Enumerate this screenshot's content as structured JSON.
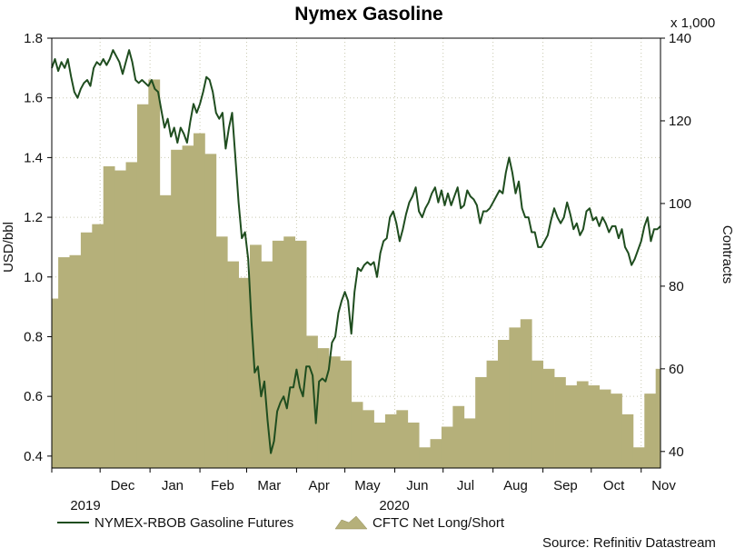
{
  "chart_data": {
    "type": "line",
    "title": "Nymex Gasoline",
    "ylabel_left": "USD/bbl",
    "ylabel_right": "Contracts",
    "right_axis_multiplier": "x 1,000",
    "ylim_left": [
      0.36,
      1.8
    ],
    "ylim_right": [
      36,
      140
    ],
    "yticks_left": [
      "0.4",
      "0.6",
      "0.8",
      "1.0",
      "1.2",
      "1.4",
      "1.6",
      "1.8"
    ],
    "yticks_right": [
      "40",
      "60",
      "80",
      "100",
      "120",
      "140"
    ],
    "xticks": [
      "Dec",
      "Jan",
      "Feb",
      "Mar",
      "Apr",
      "May",
      "Jun",
      "Jul",
      "Aug",
      "Sep",
      "Oct",
      "Nov"
    ],
    "year_labels": [
      "2019",
      "2020"
    ],
    "x_range": [
      "2019-11-01",
      "2020-11-13"
    ],
    "grid": true,
    "legend_position": "bottom",
    "source": "Source: Refinitiv Datastream",
    "series": [
      {
        "name": "NYMEX-RBOB Gasoline Futures",
        "axis": "left",
        "style": "line",
        "color": "#1f4d1f",
        "points": [
          [
            "2019-11-01",
            1.7
          ],
          [
            "2019-11-03",
            1.73
          ],
          [
            "2019-11-05",
            1.69
          ],
          [
            "2019-11-07",
            1.72
          ],
          [
            "2019-11-09",
            1.7
          ],
          [
            "2019-11-11",
            1.73
          ],
          [
            "2019-11-13",
            1.67
          ],
          [
            "2019-11-15",
            1.62
          ],
          [
            "2019-11-17",
            1.6
          ],
          [
            "2019-11-19",
            1.63
          ],
          [
            "2019-11-21",
            1.65
          ],
          [
            "2019-11-23",
            1.66
          ],
          [
            "2019-11-25",
            1.64
          ],
          [
            "2019-11-27",
            1.7
          ],
          [
            "2019-11-29",
            1.72
          ],
          [
            "2019-12-01",
            1.71
          ],
          [
            "2019-12-03",
            1.73
          ],
          [
            "2019-12-05",
            1.71
          ],
          [
            "2019-12-07",
            1.73
          ],
          [
            "2019-12-09",
            1.76
          ],
          [
            "2019-12-11",
            1.74
          ],
          [
            "2019-12-13",
            1.72
          ],
          [
            "2019-12-15",
            1.68
          ],
          [
            "2019-12-17",
            1.72
          ],
          [
            "2019-12-19",
            1.76
          ],
          [
            "2019-12-21",
            1.72
          ],
          [
            "2019-12-23",
            1.66
          ],
          [
            "2019-12-25",
            1.65
          ],
          [
            "2019-12-27",
            1.66
          ],
          [
            "2019-12-29",
            1.65
          ],
          [
            "2019-12-31",
            1.64
          ],
          [
            "2020-01-02",
            1.66
          ],
          [
            "2020-01-04",
            1.63
          ],
          [
            "2020-01-06",
            1.62
          ],
          [
            "2020-01-08",
            1.56
          ],
          [
            "2020-01-10",
            1.5
          ],
          [
            "2020-01-12",
            1.53
          ],
          [
            "2020-01-14",
            1.47
          ],
          [
            "2020-01-16",
            1.5
          ],
          [
            "2020-01-18",
            1.45
          ],
          [
            "2020-01-20",
            1.5
          ],
          [
            "2020-01-22",
            1.48
          ],
          [
            "2020-01-24",
            1.45
          ],
          [
            "2020-01-26",
            1.52
          ],
          [
            "2020-01-28",
            1.58
          ],
          [
            "2020-01-30",
            1.55
          ],
          [
            "2020-02-01",
            1.58
          ],
          [
            "2020-02-03",
            1.62
          ],
          [
            "2020-02-05",
            1.67
          ],
          [
            "2020-02-07",
            1.66
          ],
          [
            "2020-02-09",
            1.62
          ],
          [
            "2020-02-11",
            1.55
          ],
          [
            "2020-02-13",
            1.53
          ],
          [
            "2020-02-15",
            1.55
          ],
          [
            "2020-02-17",
            1.43
          ],
          [
            "2020-02-19",
            1.5
          ],
          [
            "2020-02-21",
            1.55
          ],
          [
            "2020-02-23",
            1.4
          ],
          [
            "2020-02-25",
            1.25
          ],
          [
            "2020-02-27",
            1.13
          ],
          [
            "2020-02-29",
            1.15
          ],
          [
            "2020-03-02",
            1.06
          ],
          [
            "2020-03-04",
            0.85
          ],
          [
            "2020-03-06",
            0.68
          ],
          [
            "2020-03-08",
            0.7
          ],
          [
            "2020-03-10",
            0.6
          ],
          [
            "2020-03-12",
            0.65
          ],
          [
            "2020-03-14",
            0.52
          ],
          [
            "2020-03-16",
            0.41
          ],
          [
            "2020-03-18",
            0.45
          ],
          [
            "2020-03-20",
            0.55
          ],
          [
            "2020-03-22",
            0.58
          ],
          [
            "2020-03-24",
            0.6
          ],
          [
            "2020-03-26",
            0.56
          ],
          [
            "2020-03-28",
            0.63
          ],
          [
            "2020-03-30",
            0.63
          ],
          [
            "2020-04-01",
            0.69
          ],
          [
            "2020-04-03",
            0.63
          ],
          [
            "2020-04-05",
            0.6
          ],
          [
            "2020-04-07",
            0.7
          ],
          [
            "2020-04-09",
            0.7
          ],
          [
            "2020-04-11",
            0.67
          ],
          [
            "2020-04-13",
            0.51
          ],
          [
            "2020-04-15",
            0.65
          ],
          [
            "2020-04-17",
            0.66
          ],
          [
            "2020-04-19",
            0.65
          ],
          [
            "2020-04-21",
            0.69
          ],
          [
            "2020-04-23",
            0.78
          ],
          [
            "2020-04-25",
            0.8
          ],
          [
            "2020-04-27",
            0.88
          ],
          [
            "2020-04-29",
            0.92
          ],
          [
            "2020-05-01",
            0.95
          ],
          [
            "2020-05-03",
            0.92
          ],
          [
            "2020-05-05",
            0.81
          ],
          [
            "2020-05-07",
            0.95
          ],
          [
            "2020-05-09",
            1.03
          ],
          [
            "2020-05-11",
            1.02
          ],
          [
            "2020-05-13",
            1.04
          ],
          [
            "2020-05-15",
            1.05
          ],
          [
            "2020-05-17",
            1.04
          ],
          [
            "2020-05-19",
            1.05
          ],
          [
            "2020-05-21",
            1.0
          ],
          [
            "2020-05-23",
            1.08
          ],
          [
            "2020-05-25",
            1.12
          ],
          [
            "2020-05-27",
            1.13
          ],
          [
            "2020-05-29",
            1.2
          ],
          [
            "2020-05-31",
            1.22
          ],
          [
            "2020-06-02",
            1.18
          ],
          [
            "2020-06-04",
            1.12
          ],
          [
            "2020-06-06",
            1.16
          ],
          [
            "2020-06-08",
            1.21
          ],
          [
            "2020-06-10",
            1.25
          ],
          [
            "2020-06-12",
            1.27
          ],
          [
            "2020-06-14",
            1.3
          ],
          [
            "2020-06-16",
            1.22
          ],
          [
            "2020-06-18",
            1.2
          ],
          [
            "2020-06-20",
            1.23
          ],
          [
            "2020-06-22",
            1.25
          ],
          [
            "2020-06-24",
            1.28
          ],
          [
            "2020-06-26",
            1.3
          ],
          [
            "2020-06-28",
            1.25
          ],
          [
            "2020-06-30",
            1.29
          ],
          [
            "2020-07-02",
            1.24
          ],
          [
            "2020-07-04",
            1.28
          ],
          [
            "2020-07-06",
            1.24
          ],
          [
            "2020-07-08",
            1.27
          ],
          [
            "2020-07-10",
            1.3
          ],
          [
            "2020-07-12",
            1.23
          ],
          [
            "2020-07-14",
            1.24
          ],
          [
            "2020-07-16",
            1.29
          ],
          [
            "2020-07-18",
            1.27
          ],
          [
            "2020-07-20",
            1.26
          ],
          [
            "2020-07-22",
            1.24
          ],
          [
            "2020-07-24",
            1.18
          ],
          [
            "2020-07-26",
            1.22
          ],
          [
            "2020-07-28",
            1.22
          ],
          [
            "2020-07-30",
            1.23
          ],
          [
            "2020-08-01",
            1.25
          ],
          [
            "2020-08-03",
            1.27
          ],
          [
            "2020-08-05",
            1.29
          ],
          [
            "2020-08-07",
            1.28
          ],
          [
            "2020-08-09",
            1.35
          ],
          [
            "2020-08-11",
            1.4
          ],
          [
            "2020-08-13",
            1.35
          ],
          [
            "2020-08-15",
            1.28
          ],
          [
            "2020-08-17",
            1.32
          ],
          [
            "2020-08-19",
            1.23
          ],
          [
            "2020-08-21",
            1.2
          ],
          [
            "2020-08-23",
            1.2
          ],
          [
            "2020-08-25",
            1.15
          ],
          [
            "2020-08-27",
            1.15
          ],
          [
            "2020-08-29",
            1.1
          ],
          [
            "2020-08-31",
            1.1
          ],
          [
            "2020-09-02",
            1.12
          ],
          [
            "2020-09-04",
            1.14
          ],
          [
            "2020-09-06",
            1.19
          ],
          [
            "2020-09-08",
            1.23
          ],
          [
            "2020-09-10",
            1.2
          ],
          [
            "2020-09-12",
            1.18
          ],
          [
            "2020-09-14",
            1.2
          ],
          [
            "2020-09-16",
            1.25
          ],
          [
            "2020-09-18",
            1.21
          ],
          [
            "2020-09-20",
            1.16
          ],
          [
            "2020-09-22",
            1.18
          ],
          [
            "2020-09-24",
            1.14
          ],
          [
            "2020-09-26",
            1.16
          ],
          [
            "2020-09-28",
            1.22
          ],
          [
            "2020-09-30",
            1.23
          ],
          [
            "2020-10-02",
            1.19
          ],
          [
            "2020-10-04",
            1.2
          ],
          [
            "2020-10-06",
            1.17
          ],
          [
            "2020-10-08",
            1.2
          ],
          [
            "2020-10-10",
            1.18
          ],
          [
            "2020-10-12",
            1.15
          ],
          [
            "2020-10-14",
            1.17
          ],
          [
            "2020-10-16",
            1.17
          ],
          [
            "2020-10-18",
            1.13
          ],
          [
            "2020-10-20",
            1.16
          ],
          [
            "2020-10-22",
            1.1
          ],
          [
            "2020-10-24",
            1.08
          ],
          [
            "2020-10-26",
            1.04
          ],
          [
            "2020-10-28",
            1.06
          ],
          [
            "2020-10-30",
            1.09
          ],
          [
            "2020-11-01",
            1.12
          ],
          [
            "2020-11-03",
            1.17
          ],
          [
            "2020-11-05",
            1.2
          ],
          [
            "2020-11-07",
            1.12
          ],
          [
            "2020-11-09",
            1.16
          ],
          [
            "2020-11-11",
            1.16
          ],
          [
            "2020-11-13",
            1.17
          ]
        ]
      },
      {
        "name": "CFTC Net Long/Short",
        "axis": "right",
        "style": "area",
        "color": "#b5b07a",
        "points": [
          [
            "2019-10-29",
            77
          ],
          [
            "2019-11-05",
            87
          ],
          [
            "2019-11-12",
            87.5
          ],
          [
            "2019-11-19",
            93
          ],
          [
            "2019-11-26",
            95
          ],
          [
            "2019-12-03",
            109
          ],
          [
            "2019-12-10",
            108
          ],
          [
            "2019-12-17",
            110
          ],
          [
            "2019-12-24",
            124
          ],
          [
            "2019-12-31",
            130
          ],
          [
            "2020-01-07",
            102
          ],
          [
            "2020-01-14",
            113
          ],
          [
            "2020-01-21",
            114
          ],
          [
            "2020-01-28",
            117
          ],
          [
            "2020-02-04",
            112
          ],
          [
            "2020-02-11",
            92
          ],
          [
            "2020-02-18",
            86
          ],
          [
            "2020-02-25",
            82
          ],
          [
            "2020-03-03",
            90
          ],
          [
            "2020-03-10",
            86
          ],
          [
            "2020-03-17",
            91
          ],
          [
            "2020-03-24",
            92
          ],
          [
            "2020-03-31",
            91
          ],
          [
            "2020-04-07",
            68
          ],
          [
            "2020-04-14",
            65
          ],
          [
            "2020-04-21",
            63
          ],
          [
            "2020-04-28",
            62
          ],
          [
            "2020-05-05",
            52
          ],
          [
            "2020-05-12",
            50
          ],
          [
            "2020-05-19",
            47
          ],
          [
            "2020-05-26",
            49
          ],
          [
            "2020-06-02",
            50
          ],
          [
            "2020-06-09",
            47
          ],
          [
            "2020-06-16",
            41
          ],
          [
            "2020-06-23",
            43
          ],
          [
            "2020-06-30",
            46
          ],
          [
            "2020-07-07",
            51
          ],
          [
            "2020-07-14",
            48
          ],
          [
            "2020-07-21",
            58
          ],
          [
            "2020-07-28",
            62
          ],
          [
            "2020-08-04",
            67
          ],
          [
            "2020-08-11",
            70
          ],
          [
            "2020-08-18",
            72
          ],
          [
            "2020-08-25",
            62
          ],
          [
            "2020-09-01",
            60
          ],
          [
            "2020-09-08",
            58
          ],
          [
            "2020-09-15",
            56
          ],
          [
            "2020-09-22",
            57
          ],
          [
            "2020-09-29",
            56
          ],
          [
            "2020-10-06",
            55
          ],
          [
            "2020-10-13",
            54
          ],
          [
            "2020-10-20",
            49
          ],
          [
            "2020-10-27",
            41
          ],
          [
            "2020-11-03",
            54
          ],
          [
            "2020-11-10",
            60
          ]
        ]
      }
    ]
  }
}
